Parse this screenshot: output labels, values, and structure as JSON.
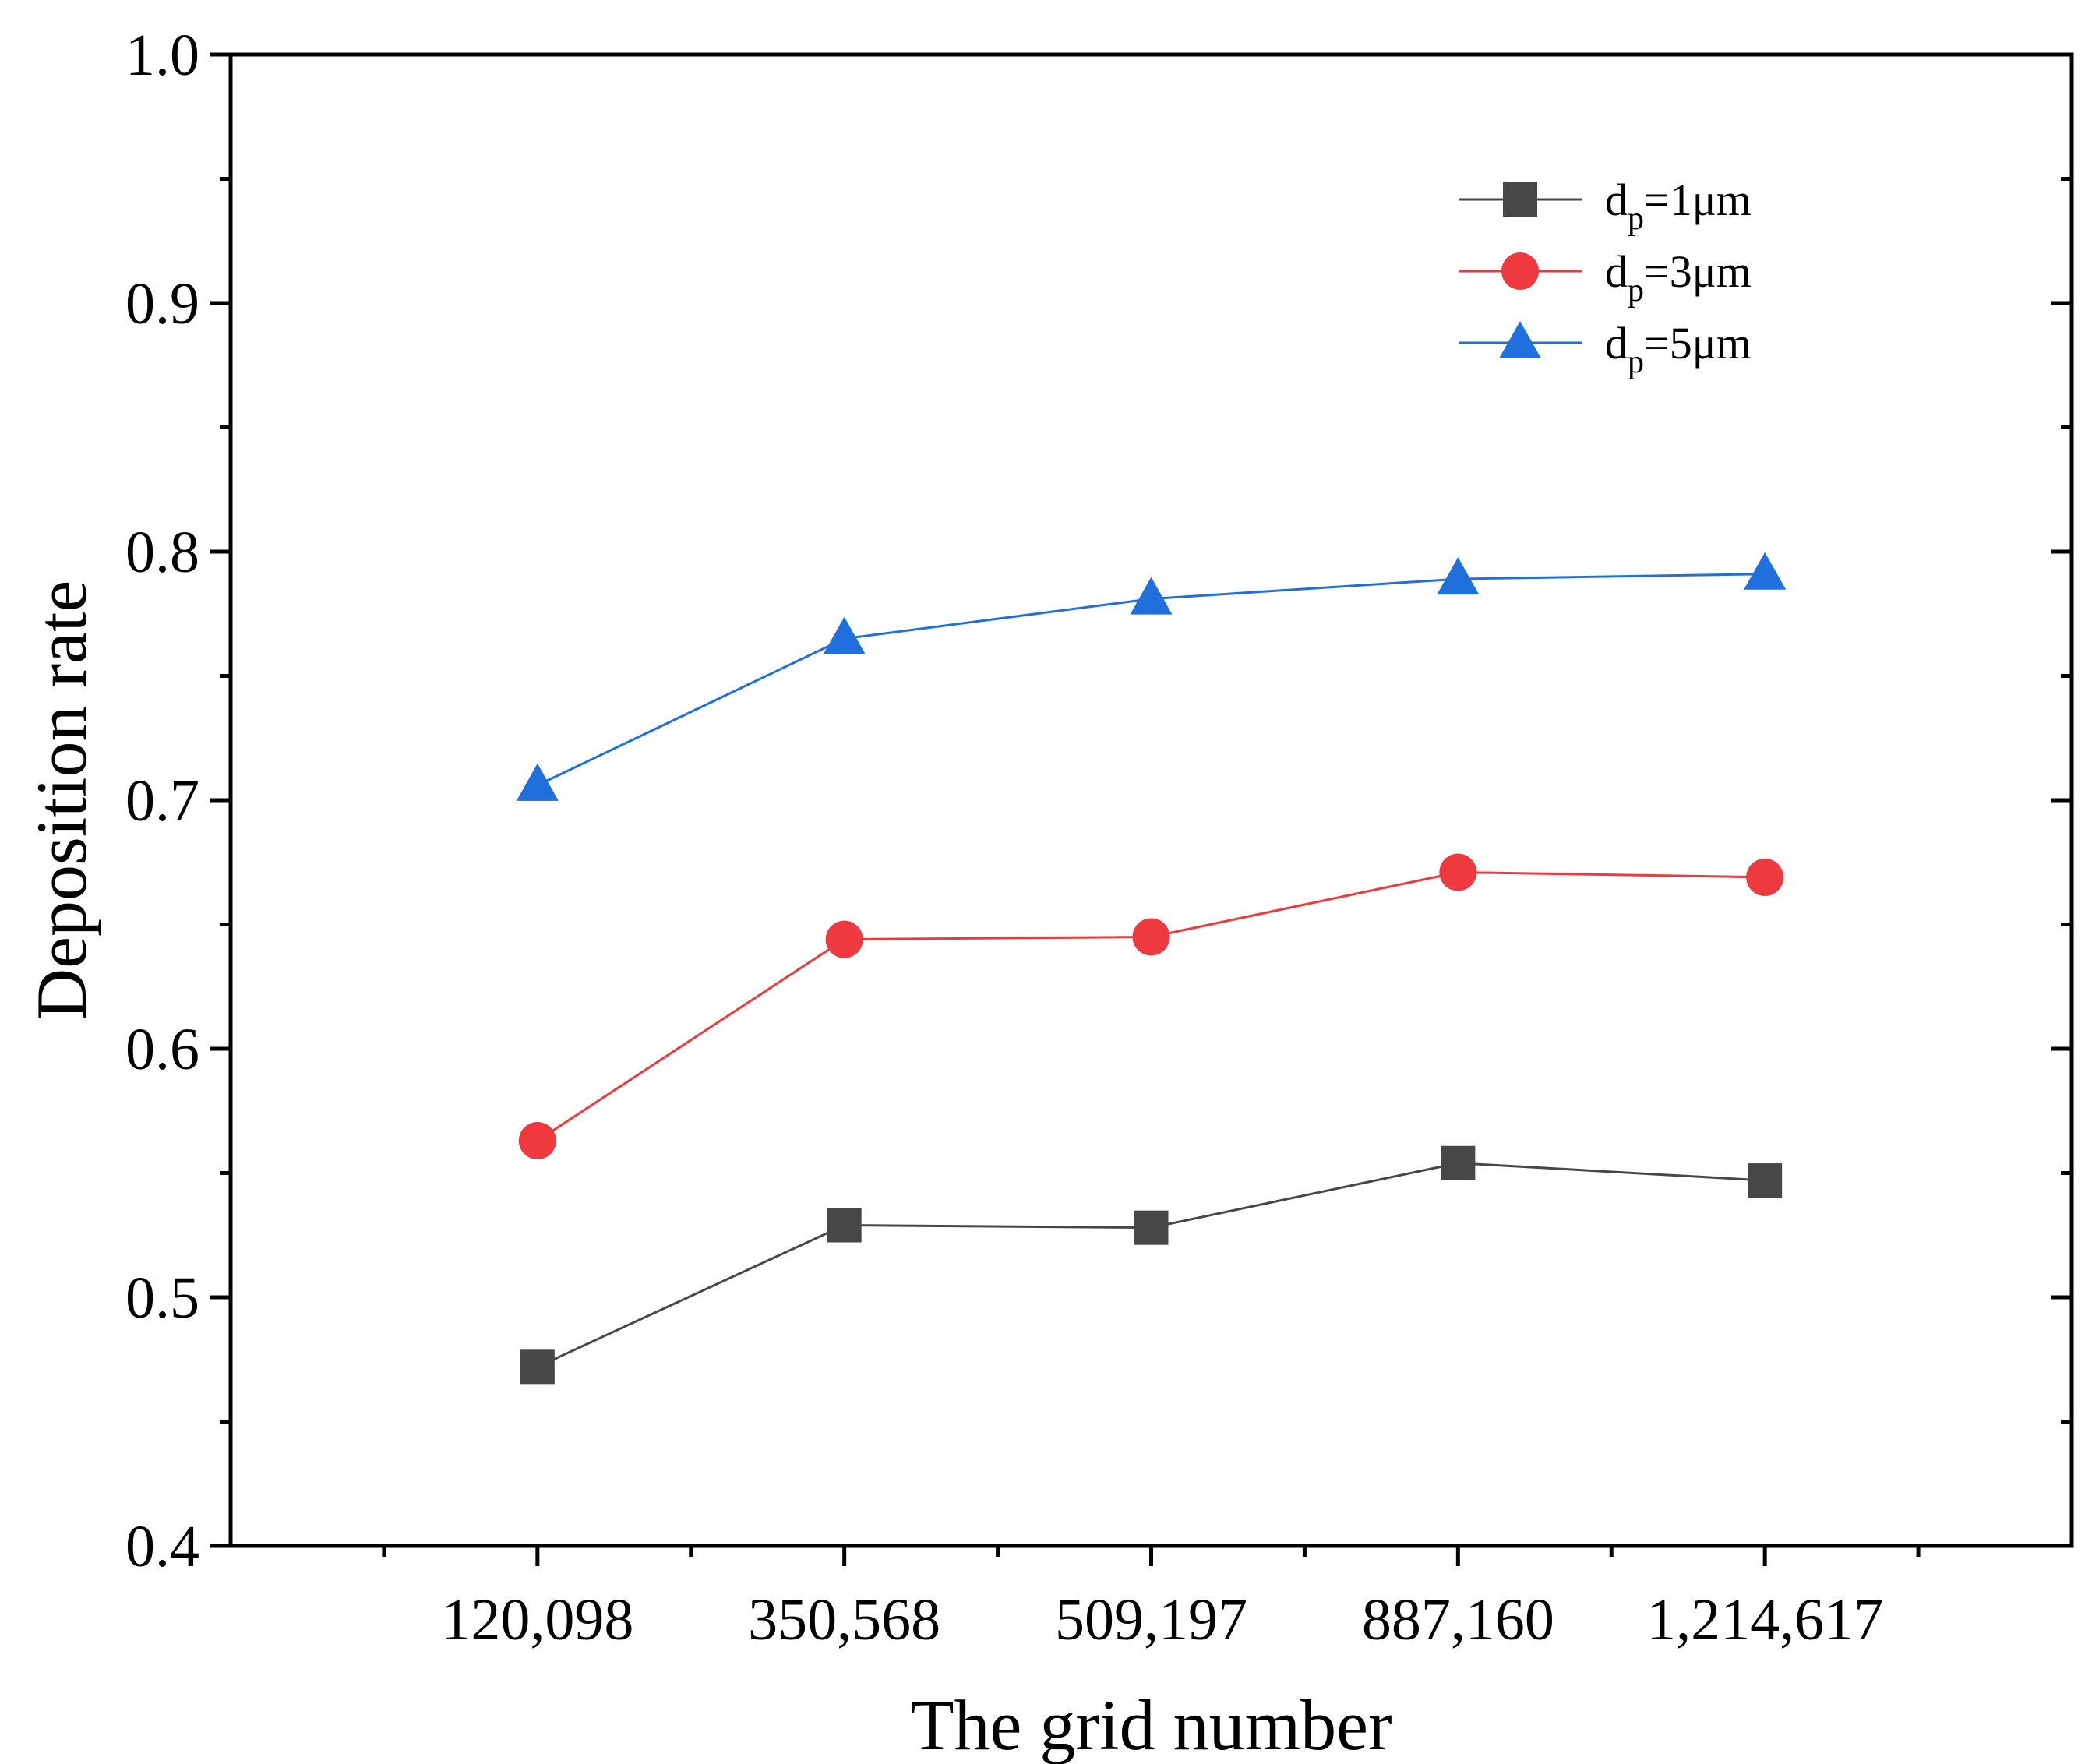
{
  "chart_data": {
    "type": "line",
    "title": "",
    "xlabel": "The grid number",
    "ylabel": "Deposition rate",
    "categories": [
      "120,098",
      "350,568",
      "509,197",
      "887,160",
      "1,214,617"
    ],
    "ylim": [
      0.4,
      1.0
    ],
    "yticks": [
      "0.4",
      "0.5",
      "0.6",
      "0.7",
      "0.8",
      "0.9",
      "1.0"
    ],
    "grid": false,
    "legend_position": "top-right",
    "series": [
      {
        "name": "dp=1μm",
        "legend_base": "d",
        "legend_sub": "p",
        "legend_rest": "=1μm",
        "color": "#474747",
        "marker": "square",
        "values": [
          0.472,
          0.529,
          0.528,
          0.554,
          0.547
        ]
      },
      {
        "name": "dp=3μm",
        "legend_base": "d",
        "legend_sub": "p",
        "legend_rest": "=3μm",
        "color": "#ee3a3f",
        "marker": "circle",
        "values": [
          0.563,
          0.644,
          0.645,
          0.671,
          0.669
        ]
      },
      {
        "name": "dp=5μm",
        "legend_base": "d",
        "legend_sub": "p",
        "legend_rest": "=5μm",
        "color": "#1f6fdd",
        "marker": "triangle",
        "values": [
          0.706,
          0.765,
          0.781,
          0.789,
          0.791
        ]
      }
    ]
  }
}
